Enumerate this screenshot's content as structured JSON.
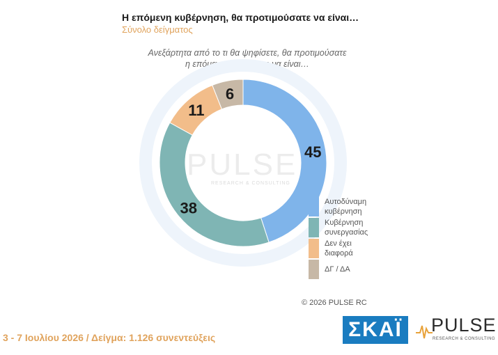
{
  "header": {
    "title": "Η επόμενη κυβέρνηση, θα προτιμούσατε να είναι…",
    "subtitle": "Σύνολο δείγματος",
    "question_line1": "Ανεξάρτητα από το τι θα ψηφίσετε, θα προτιμούσατε",
    "question_line2": "η επόμενη κυβέρνηση να είναι…"
  },
  "chart_data": {
    "type": "pie",
    "donut": true,
    "series": [
      {
        "name": "Αυτοδύναμη κυβέρνηση",
        "label_lines": [
          "Αυτοδύναμη",
          "κυβέρνηση"
        ],
        "value": 45,
        "color": "#7fb4ea"
      },
      {
        "name": "Κυβέρνηση συνεργασίας",
        "label_lines": [
          "Κυβέρνηση",
          "συνεργασίας"
        ],
        "value": 38,
        "color": "#7fb5b4"
      },
      {
        "name": "Δεν έχει διαφορά",
        "label_lines": [
          "Δεν έχει",
          "διαφορά"
        ],
        "value": 11,
        "color": "#f2bd8a"
      },
      {
        "name": "ΔΓ / ΔΑ",
        "label_lines": [
          "ΔΓ / ΔΑ"
        ],
        "value": 6,
        "color": "#c7b8a6"
      }
    ],
    "legend_position": "right"
  },
  "watermark": {
    "word": "PULSE",
    "sub": "RESEARCH & CONSULTING"
  },
  "copyright": "© 2026 PULSE RC",
  "footer": {
    "text": "3 - 7 Ιουλίου 2026  /  Δείγμα:  1.126 συνεντεύξεις"
  },
  "logos": {
    "skai": "ΣΚΑΪ",
    "pulse": "PULSE",
    "pulse_sub": "RESEARCH & CONSULTING"
  }
}
